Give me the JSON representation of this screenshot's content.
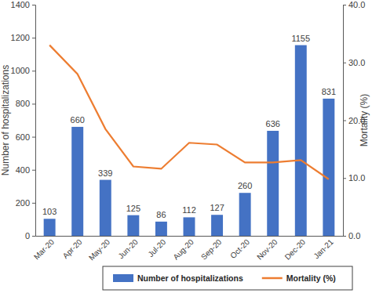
{
  "chart_data": {
    "type": "bar",
    "categories": [
      "Mar-20",
      "Apr-20",
      "May-20",
      "Jun-20",
      "Jul-20",
      "Aug-20",
      "Sep-20",
      "Oct-20",
      "Nov-20",
      "Dec-20",
      "Jan-21"
    ],
    "series": [
      {
        "name": "Number of hospitalizations",
        "type": "bar",
        "color": "#4472c4",
        "data_labels": true,
        "values": [
          103,
          660,
          339,
          125,
          86,
          112,
          127,
          260,
          636,
          1155,
          831
        ]
      },
      {
        "name": "Mortality (%)",
        "type": "line",
        "color": "#ed7d31",
        "axis": "y2",
        "values": [
          33.0,
          28.0,
          18.5,
          12.0,
          11.6,
          16.1,
          15.8,
          12.7,
          12.7,
          13.1,
          9.8
        ]
      }
    ],
    "y_label": "Number of hospitalizations",
    "y2_label": "Mortality (%)",
    "ylim": [
      0,
      1400
    ],
    "yticks": [
      0,
      200,
      400,
      600,
      800,
      1000,
      1200,
      1400
    ],
    "y2lim": [
      0,
      40
    ],
    "y2ticks": [
      {
        "value": 0,
        "label": "0.0"
      },
      {
        "value": 10,
        "label": "10.0"
      },
      {
        "value": 20,
        "label": "20.0"
      },
      {
        "value": 30,
        "label": "30.0"
      },
      {
        "value": 40,
        "label": "40.0"
      }
    ],
    "legend": "bottom"
  }
}
